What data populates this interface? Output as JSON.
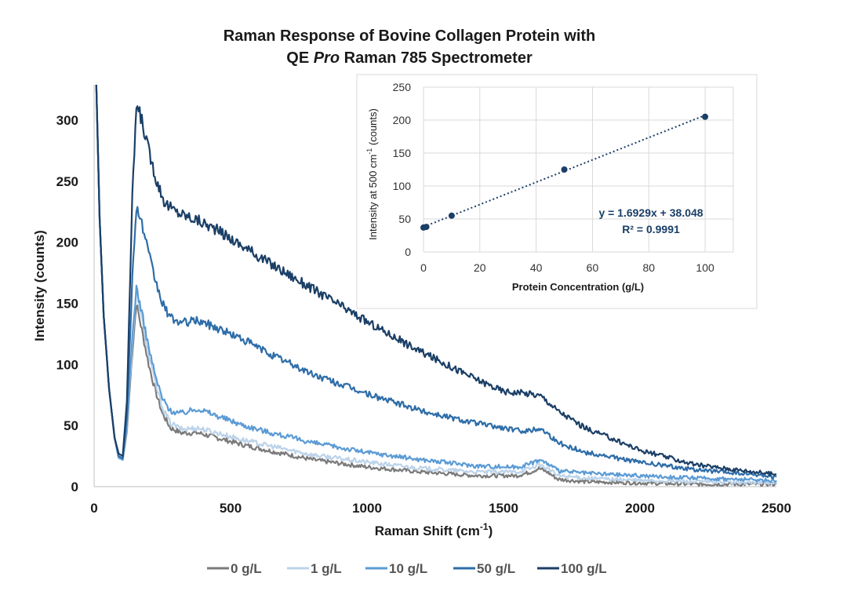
{
  "chart_data": [
    {
      "type": "line",
      "title_line1": "Raman Response of Bovine Collagen Protein with",
      "title_line2_prefix": "QE ",
      "title_line2_italic": "Pro",
      "title_line2_suffix": " Raman 785 Spectrometer",
      "xlabel": "Raman Shift (cm",
      "xlabel_sup": "-1",
      "xlabel_end": ")",
      "ylabel": "Intensity (counts)",
      "xlim": [
        0,
        2500
      ],
      "ylim": [
        0,
        320
      ],
      "xticks": [
        0,
        500,
        1000,
        1500,
        2000,
        2500
      ],
      "yticks": [
        0,
        50,
        100,
        150,
        200,
        250,
        300
      ],
      "grid": false,
      "legend_position": "bottom",
      "series": [
        {
          "name": "0 g/L",
          "color": "#7a7a7a",
          "points": [
            [
              8,
              330
            ],
            [
              20,
              220
            ],
            [
              35,
              140
            ],
            [
              55,
              80
            ],
            [
              75,
              40
            ],
            [
              90,
              23
            ],
            [
              105,
              22
            ],
            [
              120,
              45
            ],
            [
              140,
              110
            ],
            [
              155,
              150
            ],
            [
              175,
              128
            ],
            [
              200,
              100
            ],
            [
              225,
              78
            ],
            [
              250,
              60
            ],
            [
              280,
              48
            ],
            [
              320,
              44
            ],
            [
              380,
              44
            ],
            [
              450,
              40
            ],
            [
              550,
              34
            ],
            [
              650,
              29
            ],
            [
              800,
              22
            ],
            [
              1000,
              16
            ],
            [
              1200,
              12
            ],
            [
              1400,
              9
            ],
            [
              1550,
              9
            ],
            [
              1600,
              12
            ],
            [
              1630,
              15
            ],
            [
              1660,
              12
            ],
            [
              1700,
              6
            ],
            [
              1800,
              4
            ],
            [
              2000,
              3
            ],
            [
              2200,
              2
            ],
            [
              2500,
              2
            ]
          ]
        },
        {
          "name": "1 g/L",
          "color": "#bcd3ea",
          "points": [
            [
              8,
              330
            ],
            [
              20,
              220
            ],
            [
              35,
              140
            ],
            [
              55,
              80
            ],
            [
              75,
              40
            ],
            [
              90,
              23
            ],
            [
              105,
              22
            ],
            [
              120,
              48
            ],
            [
              140,
              118
            ],
            [
              155,
              160
            ],
            [
              175,
              137
            ],
            [
              200,
              108
            ],
            [
              225,
              84
            ],
            [
              250,
              65
            ],
            [
              280,
              52
            ],
            [
              320,
              47
            ],
            [
              380,
              48
            ],
            [
              450,
              44
            ],
            [
              550,
              38
            ],
            [
              650,
              33
            ],
            [
              800,
              26
            ],
            [
              1000,
              20
            ],
            [
              1200,
              15
            ],
            [
              1400,
              12
            ],
            [
              1550,
              12
            ],
            [
              1600,
              15
            ],
            [
              1630,
              18
            ],
            [
              1660,
              15
            ],
            [
              1700,
              9
            ],
            [
              1800,
              7
            ],
            [
              2000,
              5
            ],
            [
              2200,
              4
            ],
            [
              2500,
              3
            ]
          ]
        },
        {
          "name": "10 g/L",
          "color": "#5b9bd5",
          "points": [
            [
              8,
              330
            ],
            [
              20,
              220
            ],
            [
              35,
              140
            ],
            [
              55,
              80
            ],
            [
              75,
              40
            ],
            [
              90,
              24
            ],
            [
              105,
              22
            ],
            [
              120,
              50
            ],
            [
              140,
              122
            ],
            [
              155,
              163
            ],
            [
              175,
              142
            ],
            [
              200,
              114
            ],
            [
              225,
              90
            ],
            [
              250,
              72
            ],
            [
              280,
              62
            ],
            [
              320,
              60
            ],
            [
              380,
              64
            ],
            [
              450,
              58
            ],
            [
              550,
              50
            ],
            [
              650,
              44
            ],
            [
              800,
              36
            ],
            [
              1000,
              28
            ],
            [
              1200,
              22
            ],
            [
              1400,
              17
            ],
            [
              1550,
              16
            ],
            [
              1600,
              19
            ],
            [
              1630,
              22
            ],
            [
              1660,
              19
            ],
            [
              1700,
              13
            ],
            [
              1800,
              11
            ],
            [
              2000,
              9
            ],
            [
              2200,
              7
            ],
            [
              2500,
              5
            ]
          ]
        },
        {
          "name": "50 g/L",
          "color": "#2e6da8",
          "points": [
            [
              8,
              330
            ],
            [
              20,
              220
            ],
            [
              35,
              140
            ],
            [
              55,
              80
            ],
            [
              75,
              40
            ],
            [
              90,
              25
            ],
            [
              105,
              23
            ],
            [
              120,
              58
            ],
            [
              140,
              170
            ],
            [
              155,
              230
            ],
            [
              175,
              215
            ],
            [
              200,
              190
            ],
            [
              225,
              168
            ],
            [
              250,
              150
            ],
            [
              280,
              138
            ],
            [
              320,
              134
            ],
            [
              380,
              136
            ],
            [
              450,
              130
            ],
            [
              550,
              120
            ],
            [
              650,
              108
            ],
            [
              800,
              92
            ],
            [
              1000,
              76
            ],
            [
              1200,
              62
            ],
            [
              1400,
              52
            ],
            [
              1550,
              46
            ],
            [
              1600,
              46
            ],
            [
              1630,
              48
            ],
            [
              1660,
              44
            ],
            [
              1700,
              36
            ],
            [
              1800,
              28
            ],
            [
              2000,
              20
            ],
            [
              2200,
              14
            ],
            [
              2500,
              8
            ]
          ]
        },
        {
          "name": "100 g/L",
          "color": "#1b3f66",
          "points": [
            [
              8,
              330
            ],
            [
              20,
              220
            ],
            [
              35,
              140
            ],
            [
              55,
              80
            ],
            [
              75,
              40
            ],
            [
              90,
              27
            ],
            [
              105,
              25
            ],
            [
              120,
              70
            ],
            [
              140,
              235
            ],
            [
              155,
              312
            ],
            [
              175,
              300
            ],
            [
              200,
              275
            ],
            [
              230,
              250
            ],
            [
              260,
              232
            ],
            [
              300,
              225
            ],
            [
              380,
              218
            ],
            [
              450,
              210
            ],
            [
              550,
              196
            ],
            [
              650,
              182
            ],
            [
              800,
              162
            ],
            [
              1000,
              135
            ],
            [
              1200,
              110
            ],
            [
              1400,
              88
            ],
            [
              1500,
              78
            ],
            [
              1600,
              76
            ],
            [
              1640,
              74
            ],
            [
              1700,
              62
            ],
            [
              1800,
              48
            ],
            [
              2000,
              30
            ],
            [
              2200,
              18
            ],
            [
              2500,
              10
            ]
          ]
        }
      ]
    },
    {
      "type": "scatter",
      "xlabel": "Protein Concentration (g/L)",
      "ylabel": "Intensity at 500 cm",
      "ylabel_sup": "-1",
      "ylabel_end": " (counts)",
      "xlim": [
        0,
        110
      ],
      "ylim": [
        0,
        250
      ],
      "xticks": [
        0,
        20,
        40,
        60,
        80,
        100
      ],
      "yticks": [
        0,
        50,
        100,
        150,
        200,
        250
      ],
      "grid": true,
      "points": [
        [
          0,
          37
        ],
        [
          1,
          38
        ],
        [
          10,
          55
        ],
        [
          50,
          125
        ],
        [
          100,
          205
        ]
      ],
      "trendline": {
        "slope": 1.6929,
        "intercept": 38.048,
        "style": "dotted"
      },
      "equation": "y = 1.6929x + 38.048",
      "r_squared": "R² = 0.9991",
      "color": "#1b3f66"
    }
  ]
}
